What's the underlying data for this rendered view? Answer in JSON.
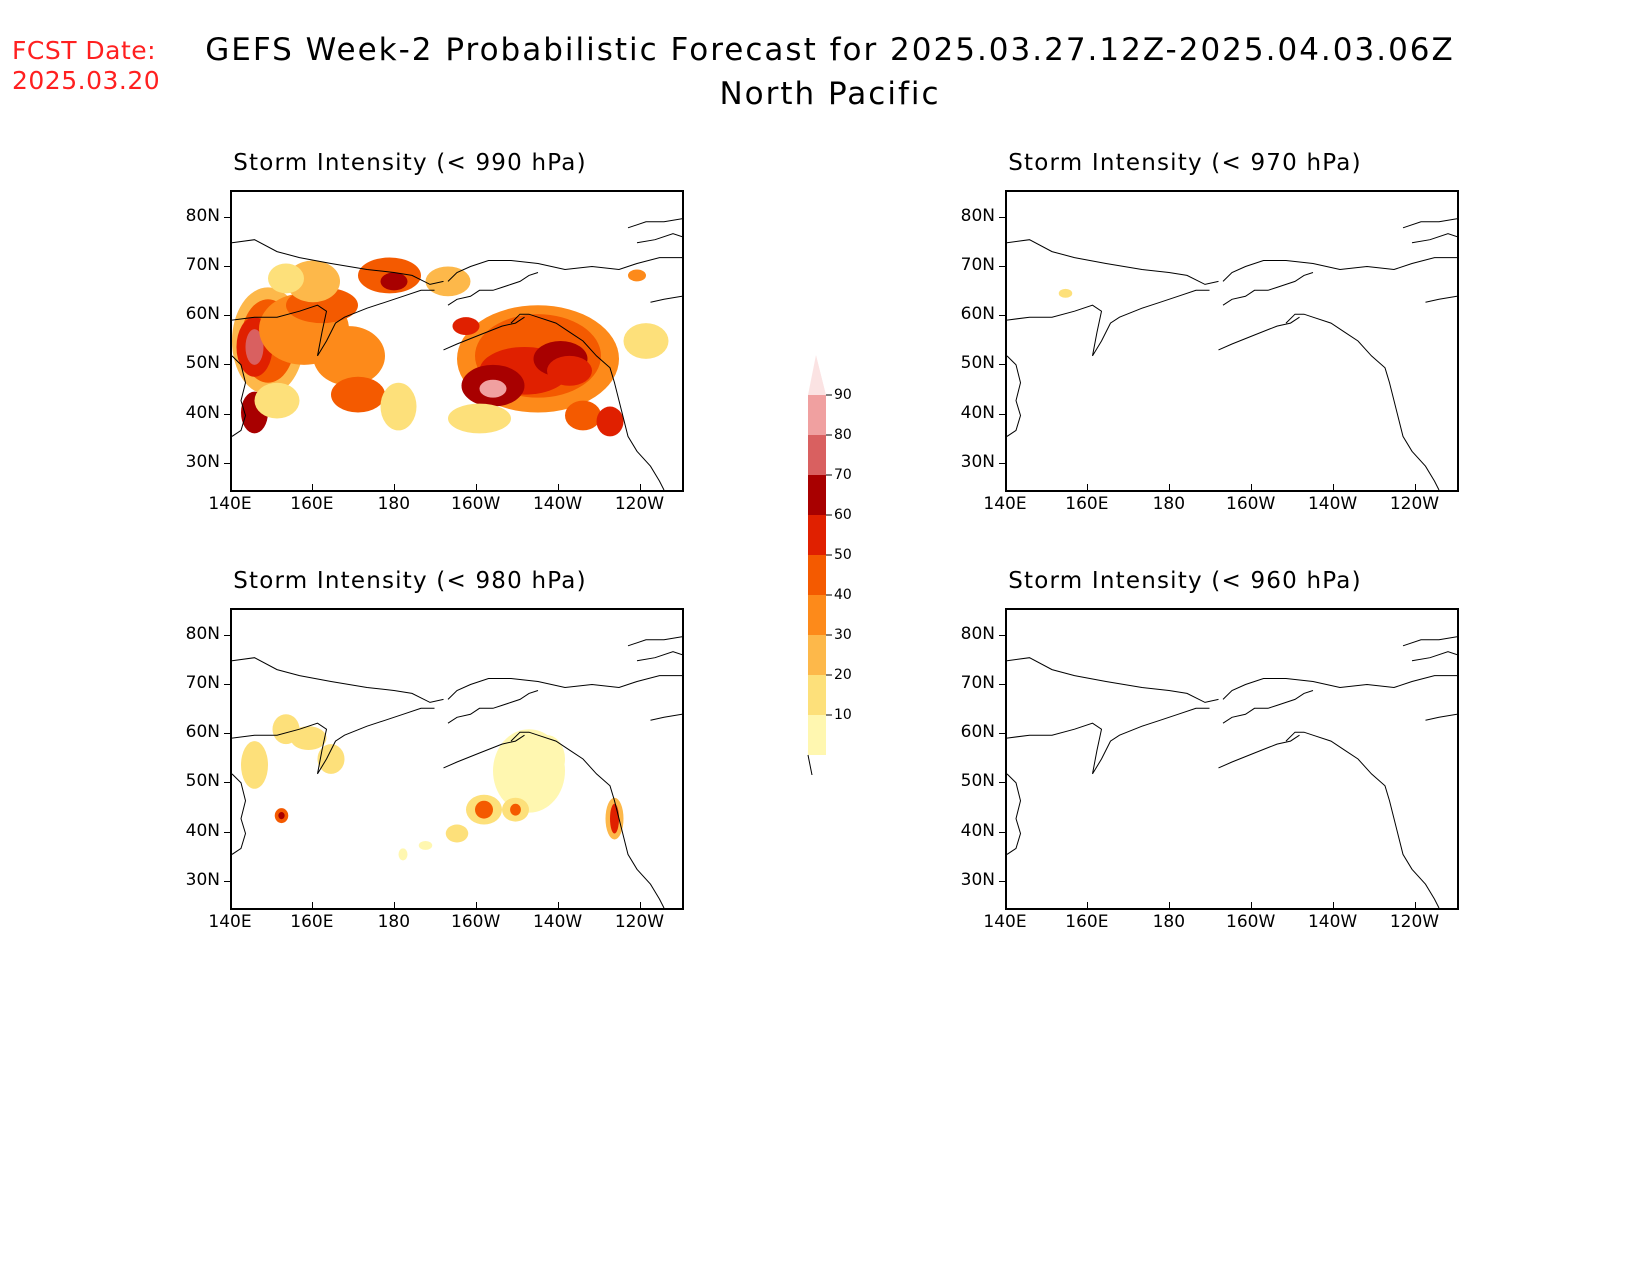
{
  "header": {
    "fcst_label": "FCST Date:",
    "fcst_date": "2025.03.20",
    "title_line1": "GEFS Week-2 Probabilistic Forecast for 2025.03.27.12Z-2025.04.03.06Z",
    "title_line2": "North Pacific"
  },
  "axes": {
    "lat_labels": [
      "80N",
      "70N",
      "60N",
      "50N",
      "40N",
      "30N"
    ],
    "lon_labels": [
      "140E",
      "160E",
      "180",
      "160W",
      "140W",
      "120W"
    ]
  },
  "panels": [
    {
      "id": "p990",
      "title": "Storm Intensity (< 990 hPa)"
    },
    {
      "id": "p970",
      "title": "Storm Intensity (< 970 hPa)"
    },
    {
      "id": "p980",
      "title": "Storm Intensity (< 980 hPa)"
    },
    {
      "id": "p960",
      "title": "Storm Intensity (< 960 hPa)"
    }
  ],
  "colorbar": {
    "levels": [
      "10",
      "20",
      "30",
      "40",
      "50",
      "60",
      "70",
      "80",
      "90"
    ],
    "colors": [
      "#fff7b0",
      "#fde07a",
      "#fdb84a",
      "#fd8a1a",
      "#f45a00",
      "#e02000",
      "#a80000",
      "#d96060",
      "#f0a0a0",
      "#fbe3e3"
    ]
  }
}
